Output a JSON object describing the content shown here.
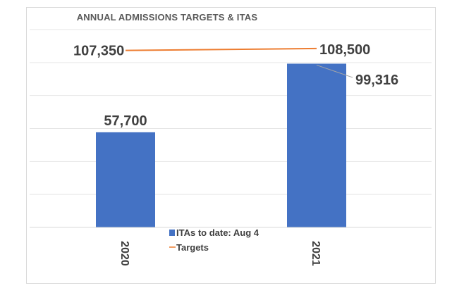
{
  "chart_data": {
    "type": "bar",
    "title": "ANNUAL ADMISSIONS TARGETS & ITAS",
    "categories": [
      "2020",
      "2021"
    ],
    "series": [
      {
        "name": "ITAs to date: Aug 4",
        "kind": "bar",
        "color": "#4472c4",
        "values": [
          57700,
          99316
        ]
      },
      {
        "name": "Targets",
        "kind": "line",
        "color": "#ed7d31",
        "values": [
          107350,
          108500
        ]
      }
    ],
    "value_labels": {
      "bars": [
        "57,700",
        "99,316"
      ],
      "line": [
        "107,350",
        "108,500"
      ]
    },
    "ylim": [
      0,
      120000
    ],
    "grid": true,
    "legend": "bottom-center",
    "xlabel": "",
    "ylabel": ""
  }
}
